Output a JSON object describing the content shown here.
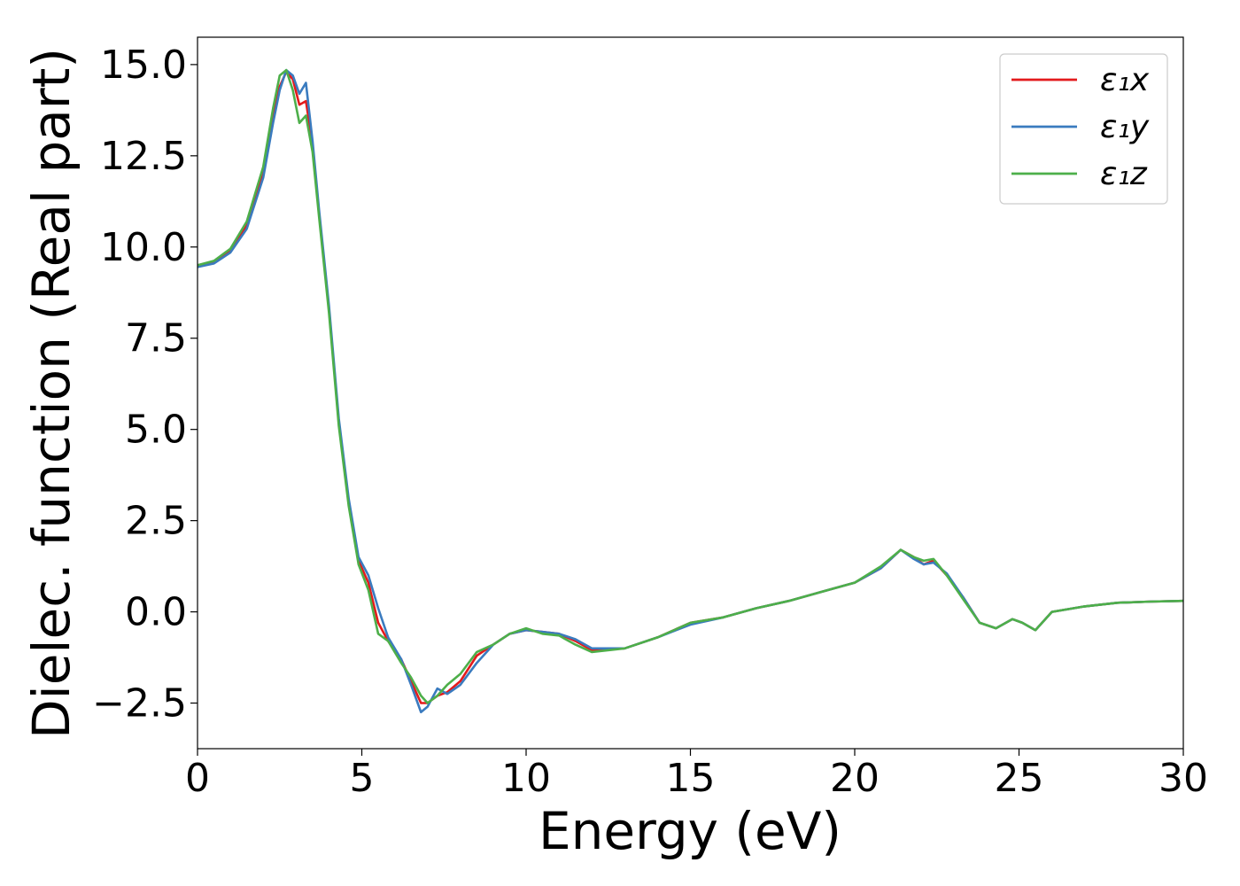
{
  "chart_data": {
    "type": "line",
    "xlabel": "Energy (eV)",
    "ylabel": "Dielec. function (Real part)",
    "xlim": [
      0,
      30
    ],
    "ylim": [
      -3.75,
      15.75
    ],
    "xticks": [
      0,
      5,
      10,
      15,
      20,
      25,
      30
    ],
    "xtick_labels": [
      "0",
      "5",
      "10",
      "15",
      "20",
      "25",
      "30"
    ],
    "yticks": [
      -2.5,
      0.0,
      2.5,
      5.0,
      7.5,
      10.0,
      12.5,
      15.0
    ],
    "ytick_labels": [
      "−2.5",
      "0.0",
      "2.5",
      "5.0",
      "7.5",
      "10.0",
      "12.5",
      "15.0"
    ],
    "grid": false,
    "legend_position": "top-right",
    "series": [
      {
        "name": "ε₁x",
        "color": "#e31a1c",
        "points": [
          [
            0,
            9.5
          ],
          [
            0.5,
            9.6
          ],
          [
            1.0,
            9.9
          ],
          [
            1.5,
            10.6
          ],
          [
            2.0,
            12.0
          ],
          [
            2.3,
            13.6
          ],
          [
            2.5,
            14.4
          ],
          [
            2.7,
            14.8
          ],
          [
            2.9,
            14.6
          ],
          [
            3.1,
            13.9
          ],
          [
            3.3,
            14.0
          ],
          [
            3.5,
            12.8
          ],
          [
            3.7,
            10.9
          ],
          [
            4.0,
            8.3
          ],
          [
            4.3,
            5.2
          ],
          [
            4.6,
            3.0
          ],
          [
            4.9,
            1.4
          ],
          [
            5.2,
            0.8
          ],
          [
            5.5,
            -0.3
          ],
          [
            5.8,
            -0.8
          ],
          [
            6.2,
            -1.3
          ],
          [
            6.5,
            -1.9
          ],
          [
            6.8,
            -2.5
          ],
          [
            7.0,
            -2.5
          ],
          [
            7.3,
            -2.3
          ],
          [
            7.6,
            -2.2
          ],
          [
            8.0,
            -1.9
          ],
          [
            8.5,
            -1.2
          ],
          [
            9.0,
            -0.9
          ],
          [
            9.5,
            -0.6
          ],
          [
            10.0,
            -0.5
          ],
          [
            10.5,
            -0.55
          ],
          [
            11.0,
            -0.6
          ],
          [
            11.5,
            -0.8
          ],
          [
            12.0,
            -1.05
          ],
          [
            13.0,
            -1.0
          ],
          [
            14.0,
            -0.7
          ],
          [
            15.0,
            -0.3
          ],
          [
            16.0,
            -0.15
          ],
          [
            17.0,
            0.1
          ],
          [
            18.0,
            0.3
          ],
          [
            19.0,
            0.55
          ],
          [
            20.0,
            0.8
          ],
          [
            20.8,
            1.2
          ],
          [
            21.4,
            1.7
          ],
          [
            21.8,
            1.5
          ],
          [
            22.1,
            1.3
          ],
          [
            22.4,
            1.4
          ],
          [
            22.8,
            1.0
          ],
          [
            23.3,
            0.4
          ],
          [
            23.8,
            -0.3
          ],
          [
            24.3,
            -0.45
          ],
          [
            24.8,
            -0.2
          ],
          [
            25.1,
            -0.3
          ],
          [
            25.5,
            -0.5
          ],
          [
            26.0,
            0.0
          ],
          [
            27.0,
            0.15
          ],
          [
            28.0,
            0.25
          ],
          [
            29.0,
            0.28
          ],
          [
            30.0,
            0.3
          ]
        ]
      },
      {
        "name": "ε₁y",
        "color": "#3a7bbf",
        "points": [
          [
            0,
            9.45
          ],
          [
            0.5,
            9.55
          ],
          [
            1.0,
            9.85
          ],
          [
            1.5,
            10.5
          ],
          [
            2.0,
            11.9
          ],
          [
            2.3,
            13.4
          ],
          [
            2.5,
            14.3
          ],
          [
            2.7,
            14.85
          ],
          [
            2.9,
            14.7
          ],
          [
            3.1,
            14.2
          ],
          [
            3.3,
            14.5
          ],
          [
            3.5,
            12.9
          ],
          [
            3.7,
            11.0
          ],
          [
            4.0,
            8.4
          ],
          [
            4.3,
            5.3
          ],
          [
            4.6,
            3.1
          ],
          [
            4.9,
            1.5
          ],
          [
            5.2,
            1.0
          ],
          [
            5.5,
            0.1
          ],
          [
            5.8,
            -0.7
          ],
          [
            6.2,
            -1.3
          ],
          [
            6.5,
            -2.0
          ],
          [
            6.8,
            -2.75
          ],
          [
            7.0,
            -2.6
          ],
          [
            7.3,
            -2.1
          ],
          [
            7.6,
            -2.25
          ],
          [
            8.0,
            -2.0
          ],
          [
            8.5,
            -1.4
          ],
          [
            9.0,
            -0.9
          ],
          [
            9.5,
            -0.6
          ],
          [
            10.0,
            -0.5
          ],
          [
            10.5,
            -0.55
          ],
          [
            11.0,
            -0.6
          ],
          [
            11.5,
            -0.75
          ],
          [
            12.0,
            -1.0
          ],
          [
            13.0,
            -1.0
          ],
          [
            14.0,
            -0.7
          ],
          [
            15.0,
            -0.35
          ],
          [
            16.0,
            -0.15
          ],
          [
            17.0,
            0.1
          ],
          [
            18.0,
            0.3
          ],
          [
            19.0,
            0.55
          ],
          [
            20.0,
            0.8
          ],
          [
            20.8,
            1.2
          ],
          [
            21.4,
            1.7
          ],
          [
            21.8,
            1.45
          ],
          [
            22.1,
            1.3
          ],
          [
            22.4,
            1.35
          ],
          [
            22.8,
            1.05
          ],
          [
            23.3,
            0.4
          ],
          [
            23.8,
            -0.3
          ],
          [
            24.3,
            -0.45
          ],
          [
            24.8,
            -0.2
          ],
          [
            25.1,
            -0.3
          ],
          [
            25.5,
            -0.5
          ],
          [
            26.0,
            0.0
          ],
          [
            27.0,
            0.15
          ],
          [
            28.0,
            0.25
          ],
          [
            29.0,
            0.28
          ],
          [
            30.0,
            0.3
          ]
        ]
      },
      {
        "name": "ε₁z",
        "color": "#4daf4a",
        "points": [
          [
            0,
            9.5
          ],
          [
            0.5,
            9.62
          ],
          [
            1.0,
            9.95
          ],
          [
            1.5,
            10.7
          ],
          [
            2.0,
            12.2
          ],
          [
            2.3,
            13.8
          ],
          [
            2.5,
            14.7
          ],
          [
            2.7,
            14.85
          ],
          [
            2.9,
            14.3
          ],
          [
            3.1,
            13.4
          ],
          [
            3.3,
            13.6
          ],
          [
            3.5,
            12.6
          ],
          [
            3.7,
            10.8
          ],
          [
            4.0,
            8.2
          ],
          [
            4.3,
            5.1
          ],
          [
            4.6,
            2.9
          ],
          [
            4.9,
            1.3
          ],
          [
            5.2,
            0.6
          ],
          [
            5.5,
            -0.6
          ],
          [
            5.8,
            -0.8
          ],
          [
            6.2,
            -1.4
          ],
          [
            6.5,
            -1.8
          ],
          [
            6.8,
            -2.3
          ],
          [
            7.0,
            -2.5
          ],
          [
            7.3,
            -2.3
          ],
          [
            7.6,
            -2.0
          ],
          [
            8.0,
            -1.7
          ],
          [
            8.5,
            -1.1
          ],
          [
            9.0,
            -0.9
          ],
          [
            9.5,
            -0.6
          ],
          [
            10.0,
            -0.45
          ],
          [
            10.5,
            -0.6
          ],
          [
            11.0,
            -0.65
          ],
          [
            11.5,
            -0.9
          ],
          [
            12.0,
            -1.1
          ],
          [
            13.0,
            -1.0
          ],
          [
            14.0,
            -0.7
          ],
          [
            15.0,
            -0.3
          ],
          [
            16.0,
            -0.15
          ],
          [
            17.0,
            0.1
          ],
          [
            18.0,
            0.3
          ],
          [
            19.0,
            0.55
          ],
          [
            20.0,
            0.8
          ],
          [
            20.8,
            1.25
          ],
          [
            21.4,
            1.7
          ],
          [
            21.8,
            1.5
          ],
          [
            22.1,
            1.4
          ],
          [
            22.4,
            1.45
          ],
          [
            22.8,
            1.0
          ],
          [
            23.3,
            0.35
          ],
          [
            23.8,
            -0.3
          ],
          [
            24.3,
            -0.45
          ],
          [
            24.8,
            -0.2
          ],
          [
            25.1,
            -0.3
          ],
          [
            25.5,
            -0.5
          ],
          [
            26.0,
            0.0
          ],
          [
            27.0,
            0.15
          ],
          [
            28.0,
            0.25
          ],
          [
            29.0,
            0.28
          ],
          [
            30.0,
            0.3
          ]
        ]
      }
    ]
  }
}
